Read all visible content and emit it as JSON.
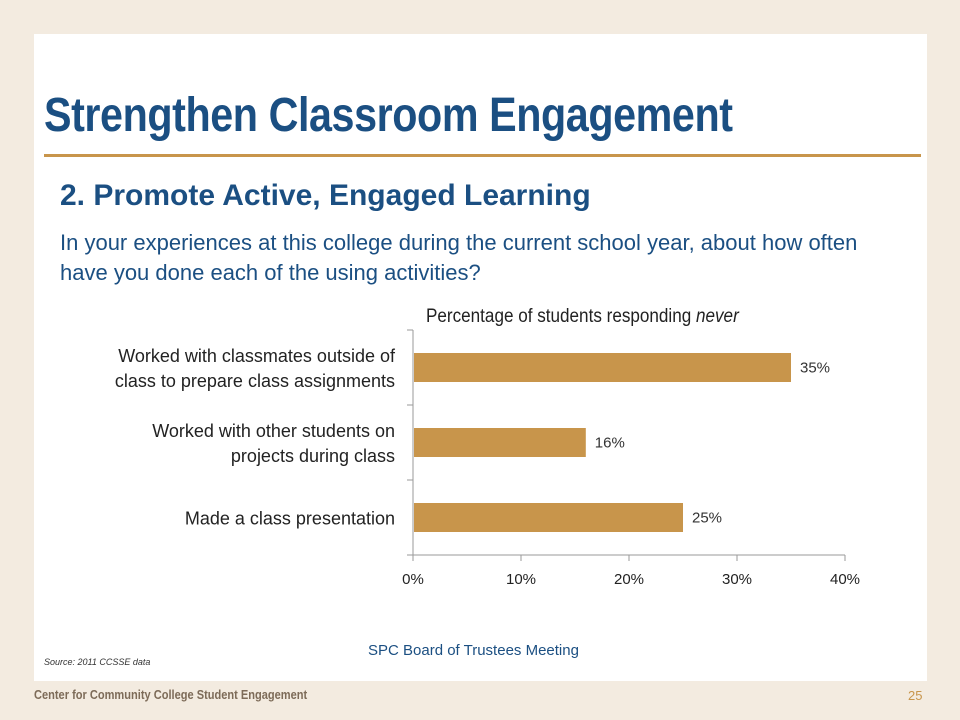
{
  "slide": {
    "title": "Strengthen Classroom Engagement",
    "subtitle": "2. Promote Active, Engaged Learning",
    "question": "In your experiences at this college during the current school year, about how often have you done each of the using activities?",
    "source": "Source: 2011 CCSSE data",
    "meeting": "SPC Board of Trustees Meeting",
    "footer": "Center for Community College Student Engagement",
    "page_number": "25"
  },
  "colors": {
    "title": "#1b4f82",
    "accent": "#c8954b",
    "bar": "#c8954b",
    "background": "#f3ebe0"
  },
  "chart_data": {
    "type": "bar",
    "orientation": "horizontal",
    "title_prefix": "Percentage of students responding ",
    "title_emphasis": "never",
    "categories": [
      [
        "Worked with classmates outside of",
        "class to prepare class assignments"
      ],
      [
        "Worked with other students on",
        "projects during class"
      ],
      [
        "Made a class presentation"
      ]
    ],
    "values": [
      35,
      16,
      25
    ],
    "data_labels": [
      "35%",
      "16%",
      "25%"
    ],
    "xlim": [
      0,
      40
    ],
    "xticks": [
      0,
      10,
      20,
      30,
      40
    ],
    "xtick_labels": [
      "0%",
      "10%",
      "20%",
      "30%",
      "40%"
    ],
    "grid": false,
    "legend": "none"
  }
}
